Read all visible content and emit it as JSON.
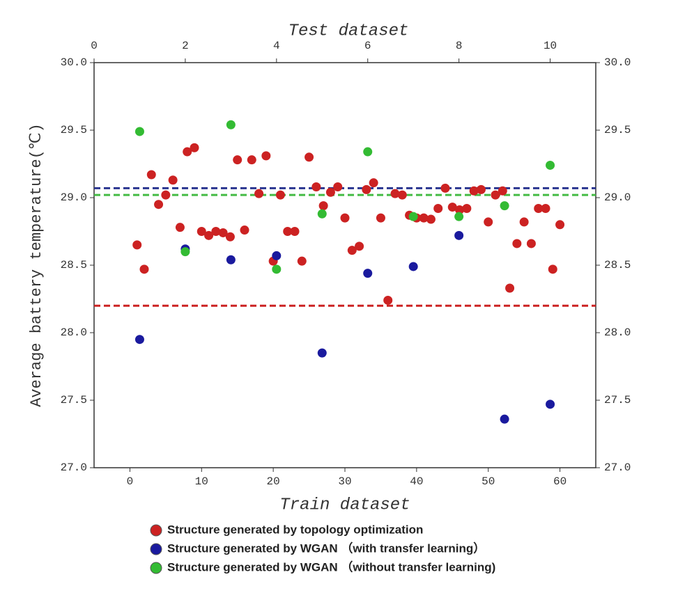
{
  "chart_data": {
    "type": "scatter",
    "xlabel": "Train dataset",
    "x2label": "Test dataset",
    "ylabel": "Average battery temperature(℃)",
    "xlim": [
      -5,
      65
    ],
    "xticks": [
      0,
      10,
      20,
      30,
      40,
      50,
      60
    ],
    "x2lim": [
      0,
      11
    ],
    "x2ticks": [
      0,
      2,
      4,
      6,
      8,
      10
    ],
    "ylim": [
      27,
      30
    ],
    "yticks": [
      {
        "value": 27,
        "label": "27.0"
      },
      {
        "value": 27.5,
        "label": "27.5"
      },
      {
        "value": 28,
        "label": "28.0"
      },
      {
        "value": 28.5,
        "label": "28.5"
      },
      {
        "value": 29,
        "label": "29.0"
      },
      {
        "value": 29.5,
        "label": "29.5"
      },
      {
        "value": 30,
        "label": "30.0"
      }
    ],
    "y2lim": [
      27,
      30
    ],
    "y2ticks": [
      {
        "value": 27,
        "label": "27.0"
      },
      {
        "value": 27.5,
        "label": "27.5"
      },
      {
        "value": 28,
        "label": "28.0"
      },
      {
        "value": 28.5,
        "label": "28.5"
      },
      {
        "value": 29,
        "label": "29.0"
      },
      {
        "value": 29.5,
        "label": "29.5"
      },
      {
        "value": 30,
        "label": "30.0"
      }
    ],
    "grid": false,
    "series": [
      {
        "name": "Structure generated by topology optimization",
        "color": "#cc2222",
        "x": [
          1,
          2,
          3,
          4,
          5,
          6,
          7,
          8,
          9,
          10,
          11,
          12,
          13,
          14,
          15,
          16,
          17,
          18,
          19,
          20,
          21,
          22,
          23,
          24,
          25,
          26,
          27,
          28,
          29,
          30,
          31,
          32,
          33,
          34,
          35,
          36,
          37,
          38,
          39,
          40,
          41,
          42,
          43,
          44,
          45,
          46,
          47,
          48,
          49,
          50,
          51,
          52,
          53,
          54,
          55,
          56,
          57,
          58,
          59,
          60
        ],
        "values": [
          28.65,
          28.47,
          29.17,
          28.95,
          29.02,
          29.13,
          28.78,
          29.34,
          29.37,
          28.75,
          28.72,
          28.75,
          28.74,
          28.71,
          29.28,
          28.76,
          29.28,
          29.03,
          29.31,
          28.53,
          29.02,
          28.75,
          28.75,
          28.53,
          29.3,
          29.08,
          28.94,
          29.04,
          29.08,
          28.85,
          28.61,
          28.64,
          29.06,
          29.11,
          28.85,
          28.24,
          29.03,
          29.02,
          28.87,
          28.85,
          28.85,
          28.84,
          28.92,
          29.07,
          28.93,
          28.91,
          28.92,
          29.05,
          29.06,
          28.82,
          29.02,
          29.05,
          28.33,
          28.66,
          28.82,
          28.66,
          28.92,
          28.92,
          28.47,
          28.8
        ]
      },
      {
        "name": "Structure generated by WGAN （with transfer learning）",
        "color": "#1a1a9e",
        "axis": "x2",
        "x": [
          1,
          2,
          3,
          4,
          5,
          6,
          7,
          8,
          9,
          10
        ],
        "values": [
          27.95,
          28.62,
          28.54,
          28.57,
          27.85,
          28.44,
          28.49,
          28.72,
          27.36,
          27.47
        ]
      },
      {
        "name": "Structure generated by WGAN （without transfer learning)",
        "color": "#33bb33",
        "axis": "x2",
        "x": [
          1,
          2,
          3,
          4,
          5,
          6,
          7,
          8,
          9,
          10
        ],
        "values": [
          29.49,
          28.6,
          29.54,
          28.47,
          28.88,
          29.34,
          28.86,
          28.86,
          28.94,
          29.24
        ]
      }
    ],
    "hlines": [
      {
        "value": 29.07,
        "color": "#2a3590"
      },
      {
        "value": 29.02,
        "color": "#44bb44"
      },
      {
        "value": 28.2,
        "color": "#cc2222"
      }
    ]
  }
}
